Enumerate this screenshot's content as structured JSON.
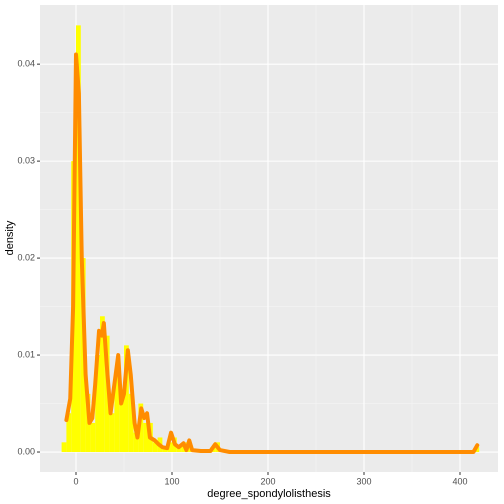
{
  "chart_data": {
    "type": "histogram",
    "x_label": "degree_spondylolisthesis",
    "y_label": "density",
    "bins": [
      -15,
      -10,
      -5,
      0,
      5,
      10,
      15,
      20,
      25,
      30,
      35,
      40,
      45,
      50,
      55,
      60,
      65,
      70,
      75,
      80,
      85,
      90,
      95,
      100,
      105,
      110,
      115,
      120,
      125,
      130,
      135,
      140,
      145,
      150,
      155,
      415,
      420
    ],
    "values": [
      0.001,
      0.004,
      0.03,
      0.044,
      0.02,
      0.006,
      0.003,
      0.01,
      0.014,
      0.012,
      0.004,
      0.008,
      0.006,
      0.011,
      0.006,
      0.002,
      0.005,
      0.003,
      0.003,
      0.001,
      0.0015,
      0.0005,
      0.001,
      0.0015,
      0.0005,
      0.001,
      0.001,
      0.0003,
      0.0003,
      0,
      0,
      0.0005,
      0.001,
      0,
      0,
      0.0005
    ],
    "color": "#ffff00",
    "density": {
      "color": "#ff8c00",
      "x": [
        -10,
        -6,
        -3,
        0,
        3,
        6,
        10,
        14,
        17,
        20,
        24,
        27,
        29,
        32,
        36,
        40,
        44,
        47,
        50,
        54,
        57,
        61,
        64,
        68,
        71,
        74,
        77,
        82,
        86,
        90,
        95,
        99,
        103,
        107,
        112,
        115,
        118,
        121,
        130,
        140,
        145,
        150,
        160,
        400,
        414,
        418
      ],
      "y": [
        0.0033,
        0.0055,
        0.015,
        0.041,
        0.037,
        0.02,
        0.008,
        0.003,
        0.0035,
        0.007,
        0.0125,
        0.012,
        0.0133,
        0.009,
        0.004,
        0.007,
        0.01,
        0.005,
        0.006,
        0.0105,
        0.008,
        0.003,
        0.0015,
        0.0045,
        0.0035,
        0.004,
        0.0015,
        0.0012,
        0.0008,
        0.0005,
        0.0004,
        0.002,
        0.0008,
        0.0005,
        0.0009,
        0.0002,
        0.0012,
        0.0002,
        0.0001,
        0.0001,
        0.0008,
        0.0002,
        0,
        0,
        0,
        0.0007
      ]
    },
    "xlim": [
      -37.5,
      439.6
    ],
    "ylim": [
      -0.00206,
      0.0461
    ],
    "xticks": [
      0,
      100,
      200,
      300,
      400
    ],
    "yticks": [
      {
        "value": 0,
        "label": "0.00"
      },
      {
        "value": 0.01,
        "label": "0.01"
      },
      {
        "value": 0.02,
        "label": "0.02"
      },
      {
        "value": 0.03,
        "label": "0.03"
      },
      {
        "value": 0.04,
        "label": "0.04"
      }
    ],
    "grid": true
  }
}
